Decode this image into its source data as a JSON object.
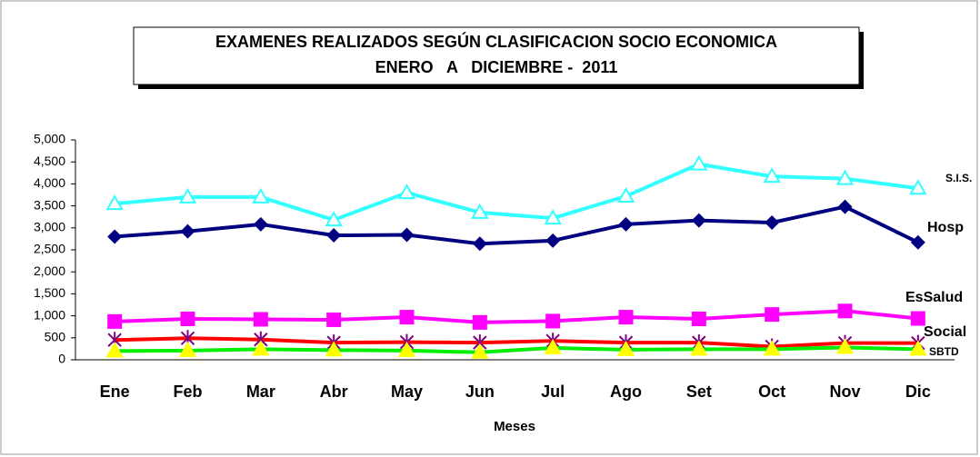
{
  "chart_data": {
    "type": "line",
    "title": [
      "EXAMENES REALIZADOS SEGÚN CLASIFICACION SOCIO ECONOMICA",
      "ENERO   A   DICIEMBRE -  2011"
    ],
    "xlabel": "Meses",
    "categories": [
      "Ene",
      "Feb",
      "Mar",
      "Abr",
      "May",
      "Jun",
      "Jul",
      "Ago",
      "Set",
      "Oct",
      "Nov",
      "Dic"
    ],
    "ylim": [
      0,
      5000
    ],
    "yticks": [
      0,
      {
        "value": 500,
        "label": "500"
      },
      {
        "value": 1000,
        "label": "1,000"
      },
      {
        "value": 1500,
        "label": "1,500"
      },
      {
        "value": 2000,
        "label": "2,000"
      },
      {
        "value": 2500,
        "label": "2,500"
      },
      {
        "value": 3000,
        "label": "3,000"
      },
      {
        "value": 3500,
        "label": "3,500"
      },
      {
        "value": 4000,
        "label": "4,000"
      },
      {
        "value": 4500,
        "label": "4,500"
      },
      {
        "value": 5000,
        "label": "5,000"
      }
    ],
    "grid": false,
    "series": [
      {
        "name": "S.I.S.",
        "color": "#33ffff",
        "marker": "triangle",
        "marker_color": "#33ffff",
        "values": [
          3550,
          3700,
          3700,
          3180,
          3800,
          3350,
          3220,
          3720,
          4450,
          4170,
          4120,
          3900
        ]
      },
      {
        "name": "Hosp",
        "color": "#000080",
        "marker": "diamond",
        "marker_color": "#000080",
        "values": [
          2800,
          2920,
          3080,
          2830,
          2840,
          2640,
          2710,
          3080,
          3170,
          3120,
          3480,
          2670
        ]
      },
      {
        "name": "EsSalud",
        "color": "#ff00ff",
        "marker": "square",
        "marker_color": "#ff00ff",
        "values": [
          870,
          930,
          920,
          910,
          970,
          850,
          880,
          970,
          930,
          1030,
          1110,
          940
        ]
      },
      {
        "name": "Social",
        "color": "#ff0000",
        "marker": "star",
        "marker_color": "#800080",
        "values": [
          450,
          490,
          460,
          390,
          400,
          390,
          430,
          390,
          390,
          300,
          380,
          380
        ]
      },
      {
        "name": "SBTD",
        "color": "#00ee00",
        "marker": "triangle",
        "marker_color": "#ffff00",
        "values": [
          200,
          210,
          240,
          220,
          210,
          170,
          270,
          230,
          240,
          240,
          280,
          240
        ]
      }
    ]
  }
}
